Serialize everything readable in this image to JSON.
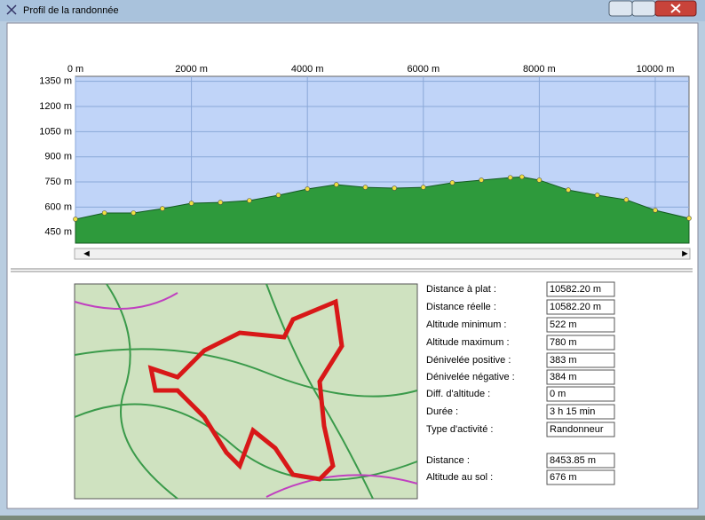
{
  "window": {
    "title": "Profil de la randonnée"
  },
  "chart_data": {
    "type": "area",
    "x": [
      0,
      500,
      1000,
      1500,
      2000,
      2500,
      3000,
      3500,
      4000,
      4500,
      5000,
      5500,
      6000,
      6500,
      7000,
      7500,
      7700,
      8000,
      8500,
      9000,
      9500,
      10000,
      10582.2
    ],
    "values": [
      528,
      565,
      565,
      591,
      623,
      628,
      639,
      671,
      708,
      734,
      718,
      713,
      718,
      745,
      761,
      776,
      780,
      761,
      702,
      671,
      644,
      581,
      533
    ],
    "fill": "#2e9a3c",
    "point_color": "#f0e040",
    "background": "#c0d4f8",
    "xlim": [
      0,
      10582.2
    ],
    "xticks": [
      {
        "value": 0,
        "label": "0 m"
      },
      {
        "value": 2000,
        "label": "2000 m"
      },
      {
        "value": 4000,
        "label": "4000 m"
      },
      {
        "value": 6000,
        "label": "6000 m"
      },
      {
        "value": 8000,
        "label": "8000 m"
      },
      {
        "value": 10000,
        "label": "10000 m"
      }
    ],
    "ylim": [
      385,
      1380
    ],
    "yticks": [
      {
        "value": 1350,
        "label": "1350 m"
      },
      {
        "value": 1200,
        "label": "1200 m"
      },
      {
        "value": 1050,
        "label": "1050 m"
      },
      {
        "value": 900,
        "label": "900 m"
      },
      {
        "value": 750,
        "label": "750 m"
      },
      {
        "value": 600,
        "label": "600 m"
      },
      {
        "value": 450,
        "label": "450 m"
      }
    ],
    "grid": true
  },
  "stats": [
    {
      "label": "Distance à plat :",
      "value": "10582.20 m"
    },
    {
      "label": "Distance réelle :",
      "value": "10582.20 m"
    },
    {
      "label": "Altitude minimum :",
      "value": "522 m"
    },
    {
      "label": "Altitude maximum :",
      "value": "780 m"
    },
    {
      "label": "Dénivelée positive :",
      "value": "383 m"
    },
    {
      "label": "Dénivelée négative :",
      "value": "384 m"
    },
    {
      "label": "Diff. d'altitude :",
      "value": "0 m"
    },
    {
      "label": "Durée :",
      "value": "3 h 15 min"
    },
    {
      "label": "Type d'activité :",
      "value": "Randonneur"
    },
    {
      "label": "Distance :",
      "value": "8453.85 m"
    },
    {
      "label": "Altitude au sol :",
      "value": "676 m"
    }
  ]
}
